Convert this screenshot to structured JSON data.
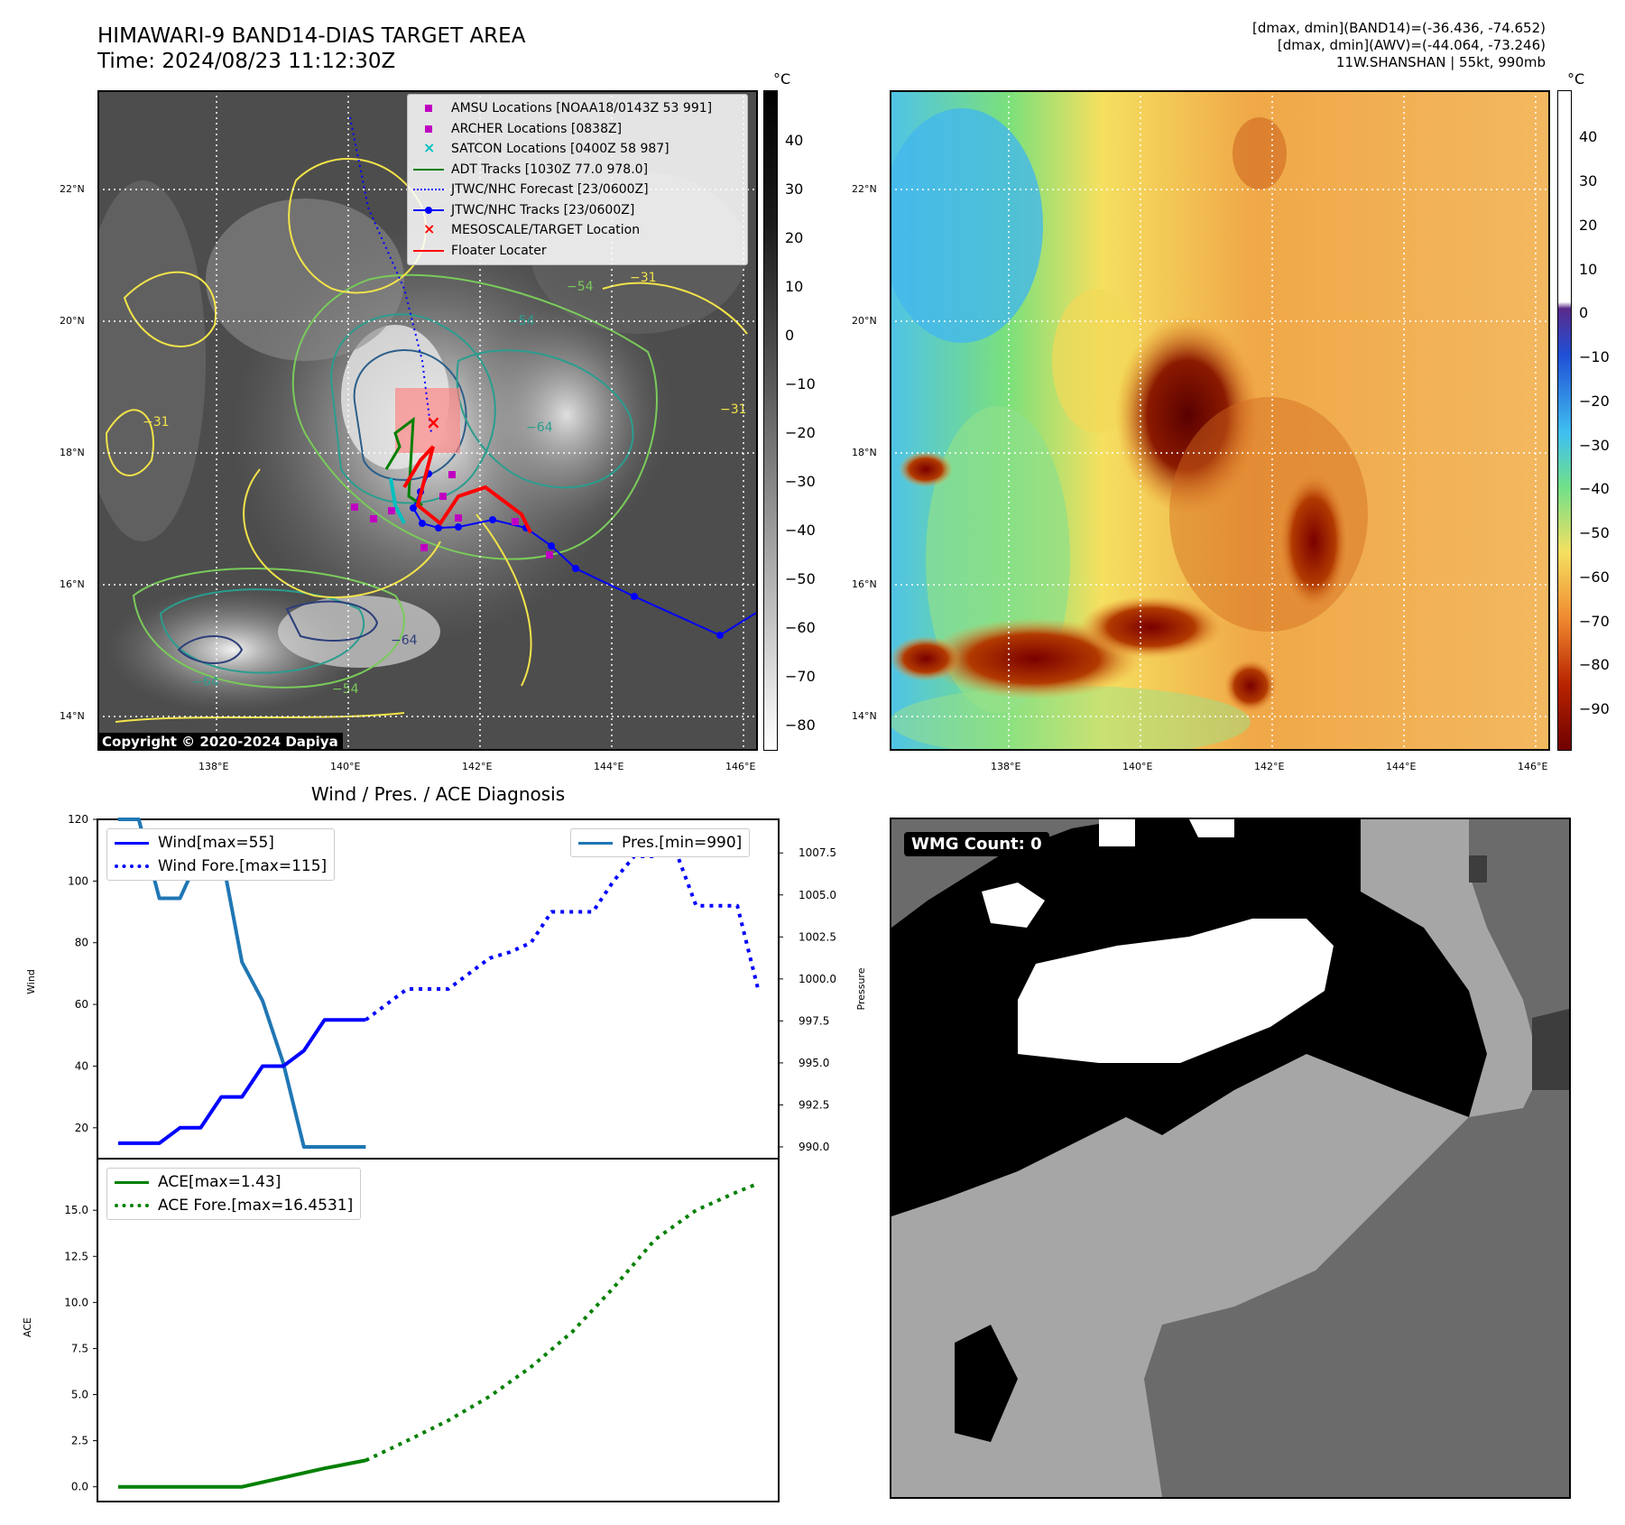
{
  "header": {
    "title_line1": "HIMAWARI-9 BAND14-DIAS TARGET AREA",
    "title_line2": "Time: 2024/08/23 11:12:30Z",
    "meta_line1": "[dmax, dmin](BAND14)=(-36.436, -74.652)",
    "meta_line2": "[dmax, dmin](AWV)=(-44.064, -73.246)",
    "meta_line3": "11W.SHANSHAN | 55kt, 990mb"
  },
  "map_panel": {
    "lat_labels": [
      "22°N",
      "20°N",
      "18°N",
      "16°N",
      "14°N"
    ],
    "lon_labels": [
      "138°E",
      "140°E",
      "142°E",
      "144°E",
      "146°E"
    ],
    "copyright": "Copyright © 2020-2024 Dapiya",
    "colorbar_unit": "°C",
    "colorbar_ticks": [
      "40",
      "30",
      "20",
      "10",
      "0",
      "−10",
      "−20",
      "−30",
      "−40",
      "−50",
      "−60",
      "−70",
      "−80"
    ],
    "contour_labels": [
      "−31",
      "−54",
      "−54",
      "−64",
      "−31",
      "−64",
      "−54",
      "−64",
      "−31"
    ],
    "legend": [
      {
        "label": "AMSU Locations [NOAA18/0143Z 53 991]",
        "symbol": "square",
        "color": "#c000c0"
      },
      {
        "label": "ARCHER Locations [0838Z]",
        "symbol": "square",
        "color": "#c000c0"
      },
      {
        "label": "SATCON Locations [0400Z 58 987]",
        "symbol": "x",
        "color": "#00c0c0"
      },
      {
        "label": "ADT Tracks [1030Z 77.0 978.0]",
        "symbol": "line",
        "color": "#008000"
      },
      {
        "label": "JTWC/NHC Forecast [23/0600Z]",
        "symbol": "dotted",
        "color": "#0000ff"
      },
      {
        "label": "JTWC/NHC Tracks [23/0600Z]",
        "symbol": "line-dot",
        "color": "#0000ff"
      },
      {
        "label": "MESOSCALE/TARGET Location",
        "symbol": "x",
        "color": "#ff0000"
      },
      {
        "label": "Floater Locater",
        "symbol": "line",
        "color": "#ff0000"
      }
    ]
  },
  "awv_panel": {
    "lat_labels": [
      "22°N",
      "20°N",
      "18°N",
      "16°N",
      "14°N"
    ],
    "lon_labels": [
      "138°E",
      "140°E",
      "142°E",
      "144°E",
      "146°E"
    ],
    "colorbar_unit": "°C",
    "colorbar_ticks": [
      "40",
      "30",
      "20",
      "10",
      "0",
      "−10",
      "−20",
      "−30",
      "−40",
      "−50",
      "−60",
      "−70",
      "−80",
      "−90"
    ]
  },
  "wmg_panel": {
    "badge": "WMG Count: 0"
  },
  "chart_data": [
    {
      "type": "line",
      "title": "Wind / Pres. / ACE Diagnosis",
      "ylabel": "Wind",
      "ylabel_right": "Pressure",
      "ylim": [
        10,
        120
      ],
      "ylim_right": [
        989.3,
        1009.5
      ],
      "yticks": [
        20,
        40,
        60,
        80,
        100,
        120
      ],
      "yticks_right": [
        "990.0",
        "992.5",
        "995.0",
        "997.5",
        "1000.0",
        "1002.5",
        "1005.0",
        "1007.5"
      ],
      "xlim": [
        0,
        33
      ],
      "series": [
        {
          "name": "Wind[max=55]",
          "color": "#0000ff",
          "style": "solid",
          "axis": "left",
          "x": [
            1,
            2,
            3,
            4,
            5,
            6,
            7,
            8,
            9,
            10,
            11,
            12,
            13
          ],
          "y": [
            15,
            15,
            15,
            20,
            20,
            30,
            30,
            40,
            40,
            45,
            55,
            55,
            55
          ]
        },
        {
          "name": "Wind Fore.[max=115]",
          "color": "#0000ff",
          "style": "dotted",
          "axis": "left",
          "x": [
            13,
            14,
            15,
            16,
            17,
            18,
            19,
            20,
            21,
            22,
            23,
            24,
            25,
            26,
            27,
            28,
            29,
            30,
            31,
            32
          ],
          "y": [
            55,
            60,
            65,
            65,
            65,
            70,
            75,
            77,
            80,
            90,
            90,
            90,
            100,
            108,
            108,
            110,
            92,
            92,
            92,
            65
          ]
        },
        {
          "name": "Pres.[min=990]",
          "color": "#1f77b4",
          "style": "solid",
          "axis": "right",
          "x": [
            1,
            2,
            3,
            4,
            5,
            6,
            7,
            8,
            9,
            10,
            11,
            12,
            13
          ],
          "y": [
            1009.5,
            1009.5,
            1004.8,
            1004.8,
            1007.5,
            1007.5,
            1001.0,
            998.7,
            995.0,
            990.0,
            990.0,
            990.0,
            990.0
          ]
        }
      ]
    },
    {
      "type": "line",
      "ylabel": "ACE",
      "ylim": [
        -0.8,
        17.8
      ],
      "yticks": [
        "0.0",
        "2.5",
        "5.0",
        "7.5",
        "10.0",
        "12.5",
        "15.0"
      ],
      "xlim": [
        0,
        33
      ],
      "series": [
        {
          "name": "ACE[max=1.43]",
          "color": "#008000",
          "style": "solid",
          "x": [
            1,
            4,
            7,
            9,
            11,
            13
          ],
          "y": [
            0,
            0,
            0,
            0.5,
            1.0,
            1.43
          ]
        },
        {
          "name": "ACE Fore.[max=16.4531]",
          "color": "#008000",
          "style": "dotted",
          "x": [
            13,
            15,
            17,
            19,
            21,
            23,
            25,
            27,
            29,
            31,
            32
          ],
          "y": [
            1.43,
            2.5,
            3.6,
            4.9,
            6.5,
            8.4,
            10.8,
            13.4,
            15.0,
            16.0,
            16.45
          ]
        }
      ]
    }
  ]
}
